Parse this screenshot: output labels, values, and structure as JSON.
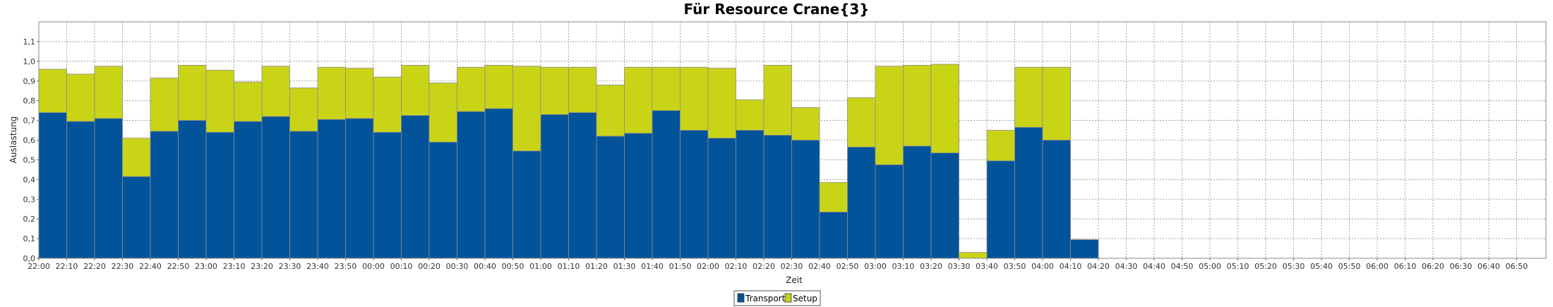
{
  "colors": {
    "transport": "#02539A",
    "setup": "#C9D417",
    "bar_outline": "#8C8C8C",
    "grid": "#8A8A8A",
    "plot_border": "#8A8A8A"
  },
  "chart_data": {
    "type": "bar",
    "stacked": true,
    "title": "Für Resource Crane{3}",
    "xlabel": "Zeit",
    "ylabel": "Auslastung",
    "ylim": [
      0,
      1.2
    ],
    "yticks": [
      "0,0",
      "0,1",
      "0,2",
      "0,3",
      "0,4",
      "0,5",
      "0,6",
      "0,7",
      "0,8",
      "0,9",
      "1,0",
      "1,1"
    ],
    "grid": true,
    "legend_position": "bottom-center",
    "categories": [
      "22:00",
      "22:10",
      "22:20",
      "22:30",
      "22:40",
      "22:50",
      "23:00",
      "23:10",
      "23:20",
      "23:30",
      "23:40",
      "23:50",
      "00:00",
      "00:10",
      "00:20",
      "00:30",
      "00:40",
      "00:50",
      "01:00",
      "01:10",
      "01:20",
      "01:30",
      "01:40",
      "01:50",
      "02:00",
      "02:10",
      "02:20",
      "02:30",
      "02:40",
      "02:50",
      "03:00",
      "03:10",
      "03:20",
      "03:30",
      "03:40",
      "03:50",
      "04:00",
      "04:10",
      "04:20",
      "04:30",
      "04:40",
      "04:50",
      "05:00",
      "05:10",
      "05:20",
      "05:30",
      "05:40",
      "05:50",
      "06:00",
      "06:10",
      "06:20",
      "06:30",
      "06:40",
      "06:50"
    ],
    "series": [
      {
        "name": "Transport",
        "values": [
          0.74,
          0.695,
          0.71,
          0.415,
          0.645,
          0.7,
          0.64,
          0.695,
          0.72,
          0.645,
          0.705,
          0.71,
          0.64,
          0.725,
          0.59,
          0.745,
          0.76,
          0.545,
          0.73,
          0.74,
          0.62,
          0.635,
          0.75,
          0.65,
          0.61,
          0.65,
          0.625,
          0.6,
          0.235,
          0.565,
          0.475,
          0.57,
          0.535,
          0.0,
          0.495,
          0.665,
          0.6,
          0.095,
          0,
          0,
          0,
          0,
          0,
          0,
          0,
          0,
          0,
          0,
          0,
          0,
          0,
          0,
          0,
          0
        ]
      },
      {
        "name": "Setup",
        "values": [
          0.22,
          0.24,
          0.265,
          0.195,
          0.27,
          0.28,
          0.315,
          0.2,
          0.255,
          0.22,
          0.265,
          0.255,
          0.28,
          0.255,
          0.3,
          0.225,
          0.22,
          0.43,
          0.24,
          0.23,
          0.26,
          0.335,
          0.22,
          0.32,
          0.355,
          0.155,
          0.355,
          0.165,
          0.15,
          0.25,
          0.5,
          0.41,
          0.45,
          0.03,
          0.155,
          0.305,
          0.37,
          0.0,
          0,
          0,
          0,
          0,
          0,
          0,
          0,
          0,
          0,
          0,
          0,
          0,
          0,
          0,
          0,
          0
        ]
      }
    ]
  }
}
